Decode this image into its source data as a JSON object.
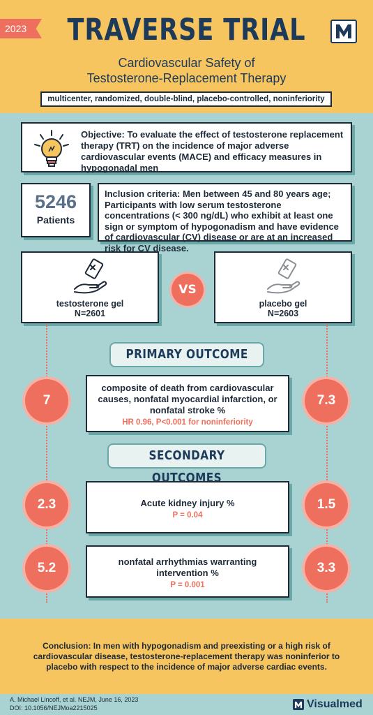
{
  "header": {
    "year": "2023",
    "title": "TRAVERSE TRIAL",
    "subtitle_line1": "Cardiovascular Safety of",
    "subtitle_line2": "Testosterone-Replacement Therapy",
    "design": "multicenter, randomized, double-blind, placebo-controlled, noninferiority",
    "logo_icon": "m-logo-icon"
  },
  "objective": {
    "icon": "lightbulb-icon",
    "text": "Objective: To evaluate the effect of testosterone replacement therapy (TRT) on the incidence of major adverse cardiovascular events (MACE) and efficacy measures in hypogonadal men"
  },
  "patients": {
    "count": "5246",
    "label": "Patients"
  },
  "inclusion": {
    "text": "Inclusion criteria: Men between 45 and 80 years age; Participants with low serum testosterone concentrations (< 300 ng/dL) who exhibit at least one sign or symptom of hypogonadism and have evidence of cardiovascular (CV) disease or are at an increased risk for CV disease."
  },
  "arms": {
    "treatment": {
      "name": "testosterone gel",
      "n": "N=2601",
      "icon": "gel-in-hand-icon"
    },
    "vs": "VS",
    "placebo": {
      "name": "placebo gel",
      "n": "N=2603",
      "icon": "gel-in-hand-icon"
    }
  },
  "colors": {
    "accent": "#ef6f5e",
    "header_bg": "#f6c560",
    "body_bg": "#a9d3d3",
    "navy": "#1e3a5a"
  },
  "primary": {
    "heading": "PRIMARY OUTCOME",
    "title": "composite of death from cardiovascular causes, nonfatal myocardial infarction, or nonfatal stroke %",
    "stat": "HR 0.96, P<0.001 for noninferiority",
    "treatment_value": "7",
    "placebo_value": "7.3"
  },
  "secondary": {
    "heading": "SECONDARY OUTCOMES",
    "items": [
      {
        "title": "Acute kidney injury %",
        "stat": "P = 0.04",
        "treatment_value": "2.3",
        "placebo_value": "1.5"
      },
      {
        "title": "nonfatal arrhythmias warranting intervention %",
        "stat": "P = 0.001",
        "treatment_value": "5.2",
        "placebo_value": "3.3"
      }
    ]
  },
  "conclusion": "Conclusion: In men with hypogonadism and preexisting or a high risk of cardiovascular disease, testosterone-replacement therapy was noninferior to placebo with respect to the incidence of major adverse cardiac events.",
  "citation": {
    "line1": "A. Michael Lincoff, et al. NEJM, June 16, 2023",
    "line2": "DOI: 10.1056/NEJMoa2215025"
  },
  "brand": "Visualmed"
}
